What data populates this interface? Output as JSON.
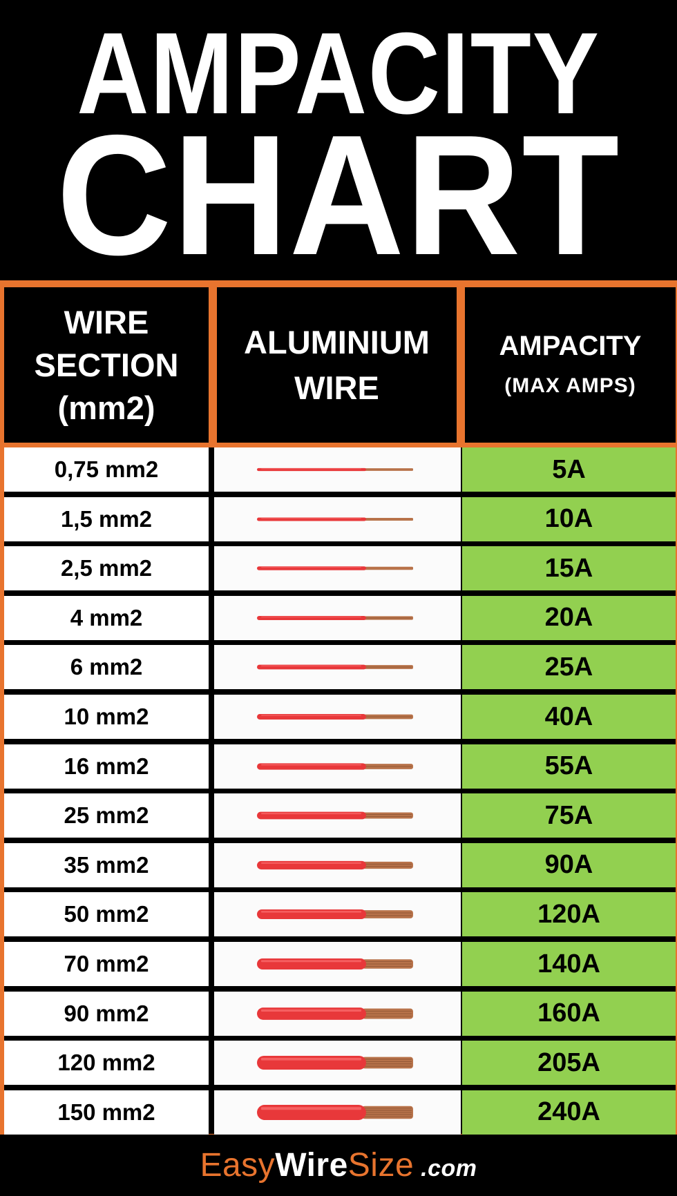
{
  "title": {
    "line1": "AMPACITY",
    "line2": "CHART"
  },
  "headers": {
    "section_lines": [
      "WIRE",
      "SECTION",
      "(mm2)"
    ],
    "wire_lines": [
      "ALUMINIUM",
      "WIRE"
    ],
    "ampacity": "AMPACITY",
    "ampacity_sub": "(MAX AMPS)"
  },
  "chart_data": {
    "type": "table",
    "columns": [
      "WIRE SECTION (mm2)",
      "ALUMINIUM WIRE",
      "AMPACITY (MAX AMPS)"
    ],
    "categories": [
      "0,75 mm2",
      "1,5 mm2",
      "2,5 mm2",
      "4 mm2",
      "6 mm2",
      "10 mm2",
      "16 mm2",
      "25 mm2",
      "35 mm2",
      "50 mm2",
      "70 mm2",
      "90 mm2",
      "120 mm2",
      "150 mm2"
    ],
    "section_mm2": [
      0.75,
      1.5,
      2.5,
      4,
      6,
      10,
      16,
      25,
      35,
      50,
      70,
      90,
      120,
      150
    ],
    "values": [
      5,
      10,
      15,
      20,
      25,
      40,
      55,
      75,
      90,
      120,
      140,
      160,
      205,
      240
    ],
    "value_labels": [
      "5A",
      "10A",
      "15A",
      "20A",
      "25A",
      "40A",
      "55A",
      "75A",
      "90A",
      "120A",
      "140A",
      "160A",
      "205A",
      "240A"
    ]
  },
  "colors": {
    "frame": "#e8742e",
    "ampacity_fill": "#92d050",
    "insulation": "#e8383a",
    "copper": "#b8734a"
  },
  "footer": {
    "brand_part1": "Easy",
    "brand_part2": "Wire",
    "brand_part3": "Size",
    "brand_suffix": ".com"
  }
}
